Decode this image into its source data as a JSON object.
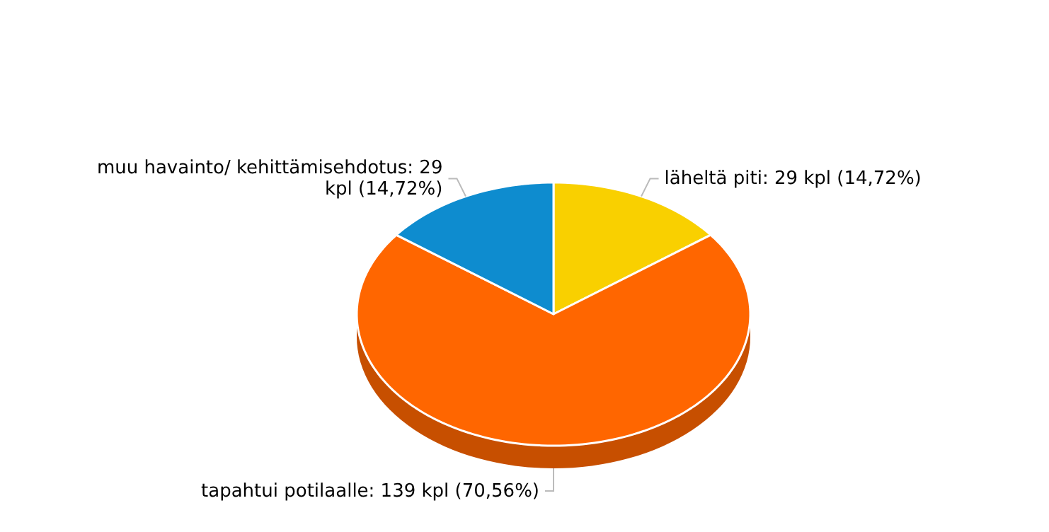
{
  "chart_data": {
    "type": "pie",
    "categories": [
      "läheltä piti",
      "tapahtui potilaalle",
      "muu havainto/ kehittämisehdotus"
    ],
    "values": [
      29,
      139,
      29
    ],
    "value_labels": [
      "29 kpl (14,72%)",
      "139 kpl (70,56%)",
      "29 kpl (14,72%)"
    ],
    "colors": [
      "#f9d000",
      "#ff6600",
      "#0e8ccf"
    ]
  }
}
